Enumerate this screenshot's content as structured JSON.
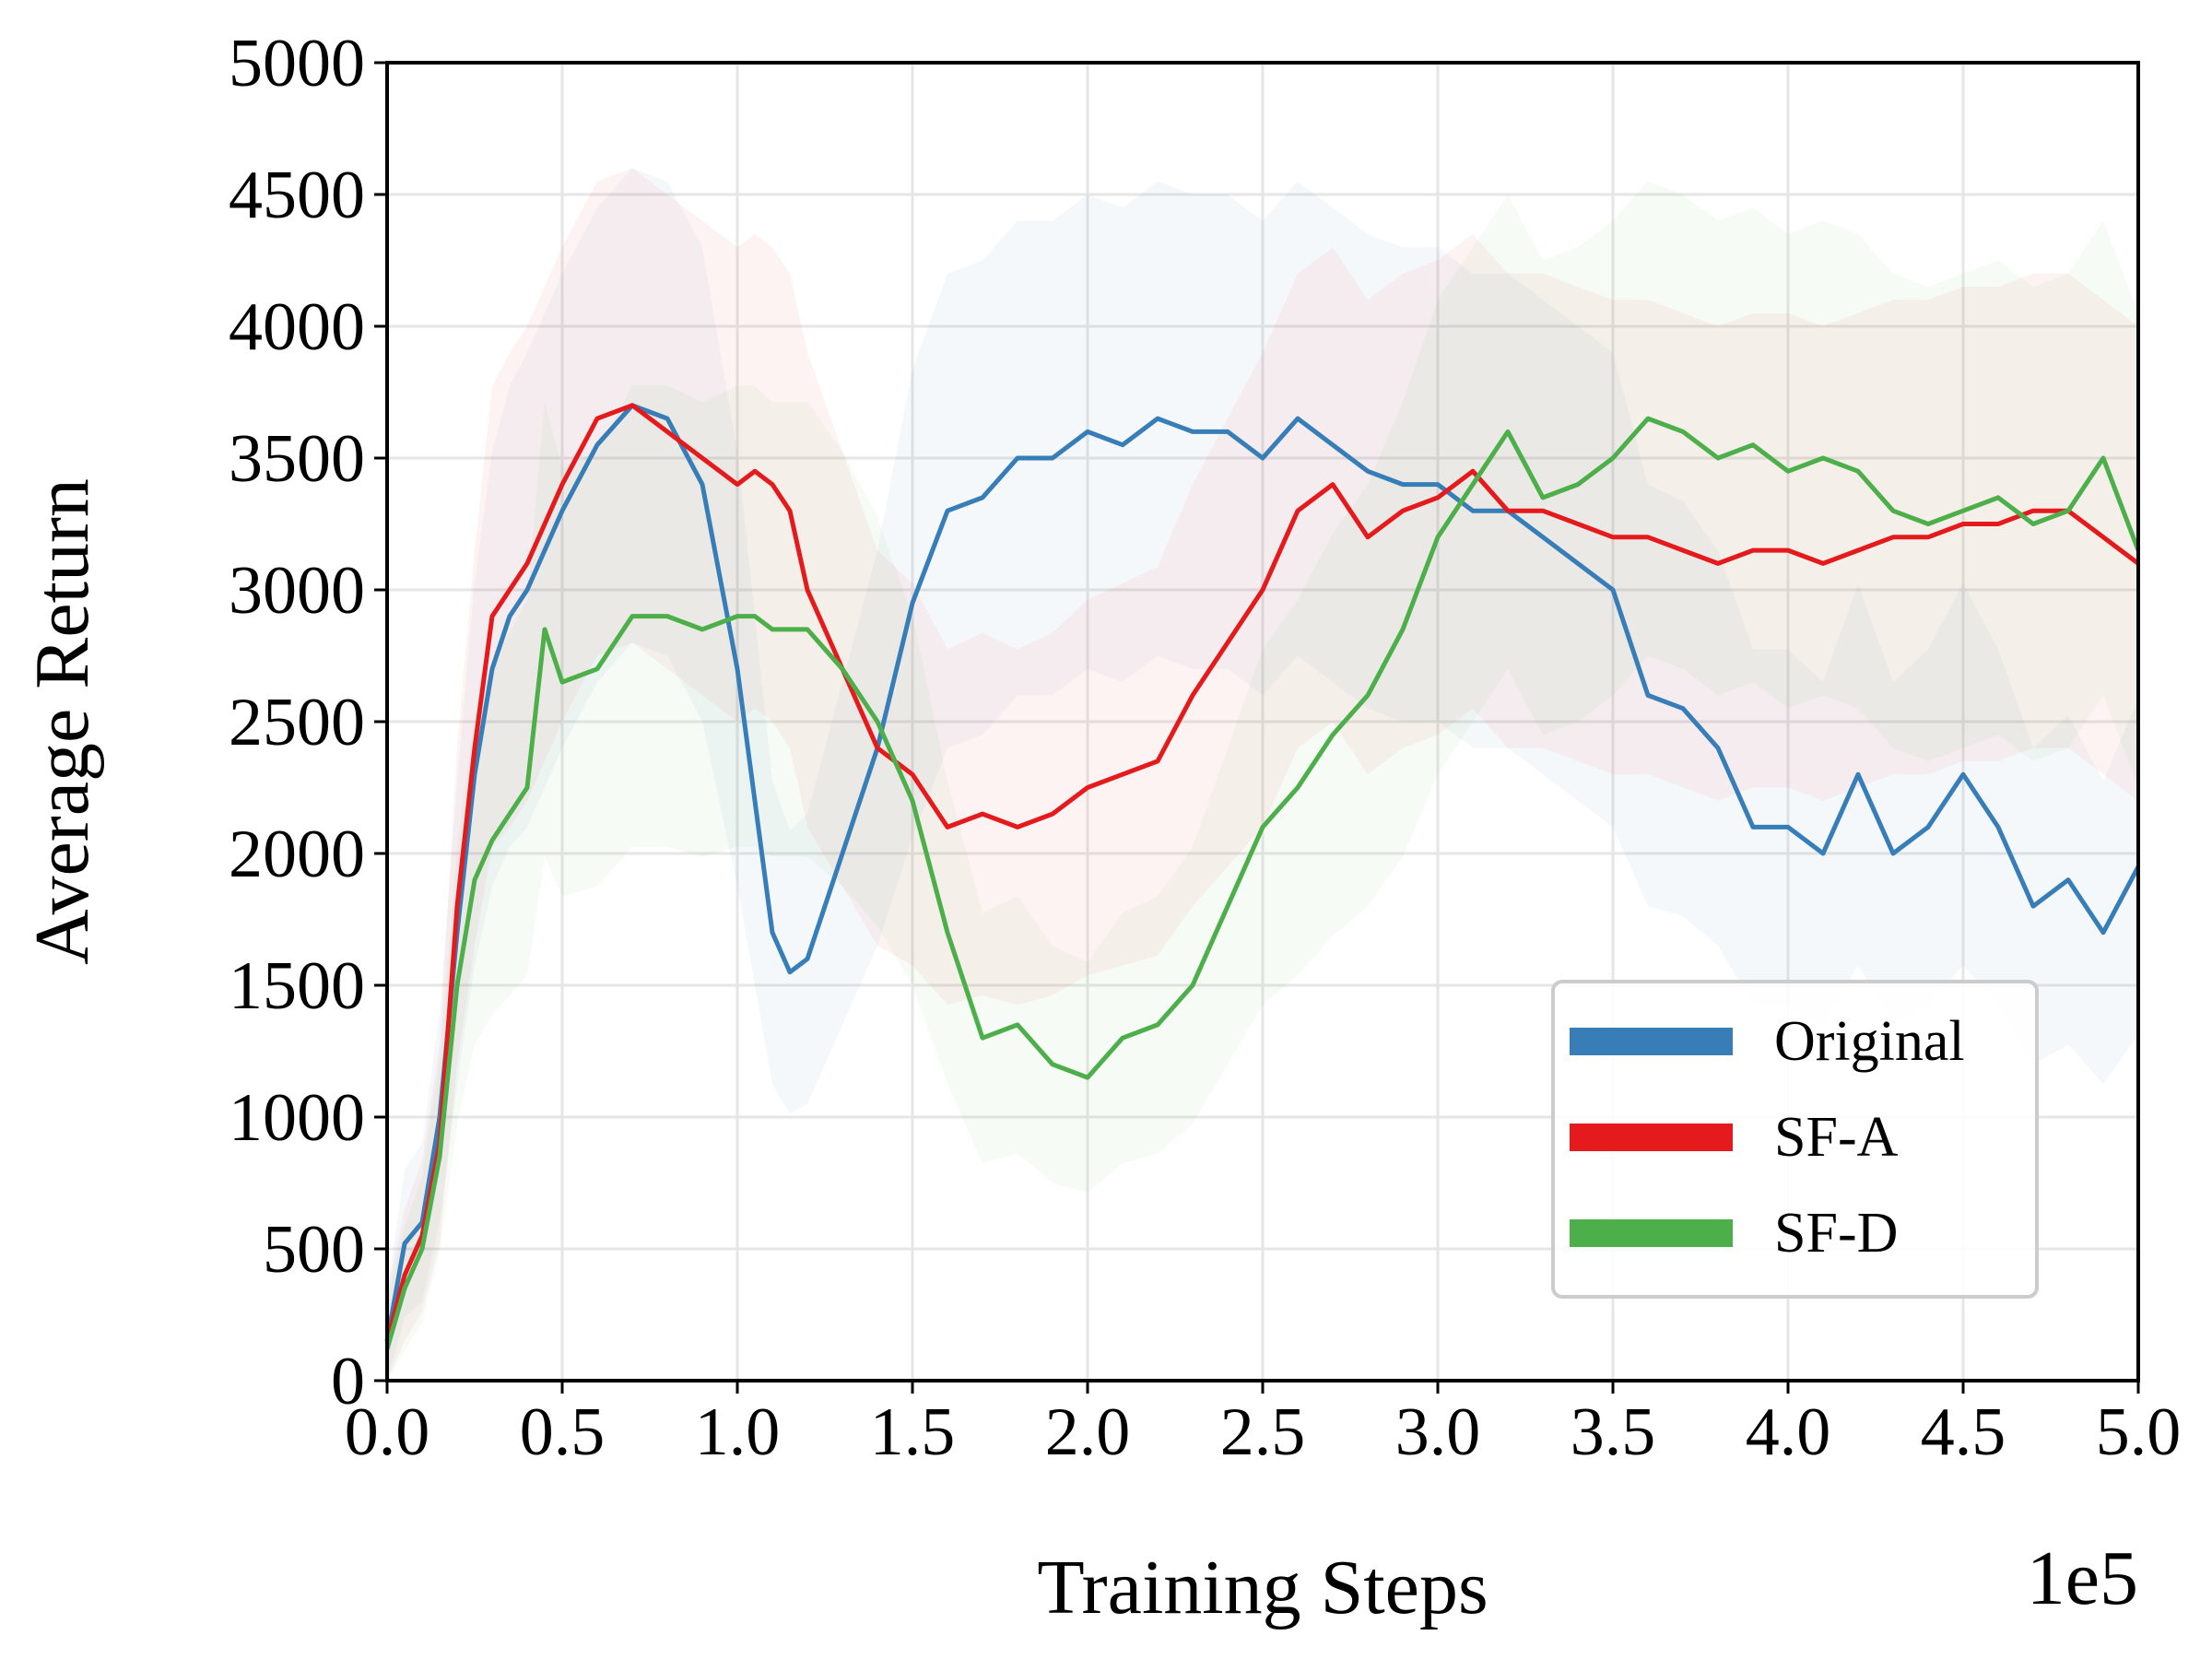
{
  "chart_data": {
    "type": "line",
    "title": "",
    "xlabel": "Training Steps",
    "ylabel": "Average Return",
    "x_offset_label": "1e5",
    "xlim": [
      0.0,
      5.0
    ],
    "ylim": [
      0,
      5000
    ],
    "x_ticks": [
      "0.0",
      "0.5",
      "1.0",
      "1.5",
      "2.0",
      "2.5",
      "3.0",
      "3.5",
      "4.0",
      "4.5",
      "5.0"
    ],
    "y_ticks": [
      "0",
      "500",
      "1000",
      "1500",
      "2000",
      "2500",
      "3000",
      "3500",
      "4000",
      "4500",
      "5000"
    ],
    "grid": true,
    "legend_position": "lower-right",
    "x": [
      0.0,
      0.05,
      0.1,
      0.15,
      0.2,
      0.25,
      0.3,
      0.35,
      0.4,
      0.45,
      0.5,
      0.6,
      0.7,
      0.8,
      0.9,
      1.0,
      1.05,
      1.1,
      1.15,
      1.2,
      1.3,
      1.4,
      1.5,
      1.6,
      1.7,
      1.8,
      1.9,
      2.0,
      2.1,
      2.2,
      2.3,
      2.4,
      2.5,
      2.6,
      2.7,
      2.8,
      2.9,
      3.0,
      3.1,
      3.2,
      3.3,
      3.4,
      3.5,
      3.6,
      3.7,
      3.8,
      3.9,
      4.0,
      4.1,
      4.2,
      4.3,
      4.4,
      4.5,
      4.6,
      4.7,
      4.8,
      4.9,
      5.0
    ],
    "series": [
      {
        "name": "Original",
        "color": "#377eb8",
        "values": [
          150,
          520,
          600,
          1000,
          1700,
          2300,
          2700,
          2900,
          3000,
          3150,
          3300,
          3550,
          3700,
          3650,
          3400,
          2700,
          2200,
          1700,
          1550,
          1600,
          2000,
          2400,
          2950,
          3300,
          3350,
          3500,
          3500,
          3600,
          3550,
          3650,
          3600,
          3600,
          3500,
          3650,
          3550,
          3450,
          3400,
          3400,
          3300,
          3300,
          3200,
          3100,
          3000,
          2600,
          2550,
          2400,
          2100,
          2100,
          2000,
          2300,
          2000,
          2100,
          2300,
          2100,
          1800,
          1900,
          1700,
          1950
        ]
      },
      {
        "name": "SF-A",
        "color": "#e41a1c",
        "values": [
          150,
          400,
          550,
          900,
          1800,
          2400,
          2900,
          3000,
          3100,
          3250,
          3400,
          3650,
          3700,
          3600,
          3500,
          3400,
          3450,
          3400,
          3300,
          3000,
          2700,
          2400,
          2300,
          2100,
          2150,
          2100,
          2150,
          2250,
          2300,
          2350,
          2600,
          2800,
          3000,
          3300,
          3400,
          3200,
          3300,
          3350,
          3450,
          3300,
          3300,
          3250,
          3200,
          3200,
          3150,
          3100,
          3150,
          3150,
          3100,
          3150,
          3200,
          3200,
          3250,
          3250,
          3300,
          3300,
          3200,
          3100
        ]
      },
      {
        "name": "SF-D",
        "color": "#4daf4a",
        "values": [
          120,
          350,
          500,
          850,
          1500,
          1900,
          2050,
          2150,
          2250,
          2850,
          2650,
          2700,
          2900,
          2900,
          2850,
          2900,
          2900,
          2850,
          2850,
          2850,
          2700,
          2500,
          2200,
          1700,
          1300,
          1350,
          1200,
          1150,
          1300,
          1350,
          1500,
          1800,
          2100,
          2250,
          2450,
          2600,
          2850,
          3200,
          3400,
          3600,
          3350,
          3400,
          3500,
          3650,
          3600,
          3500,
          3550,
          3450,
          3500,
          3450,
          3300,
          3250,
          3300,
          3350,
          3250,
          3300,
          3500,
          3150
        ]
      }
    ]
  }
}
